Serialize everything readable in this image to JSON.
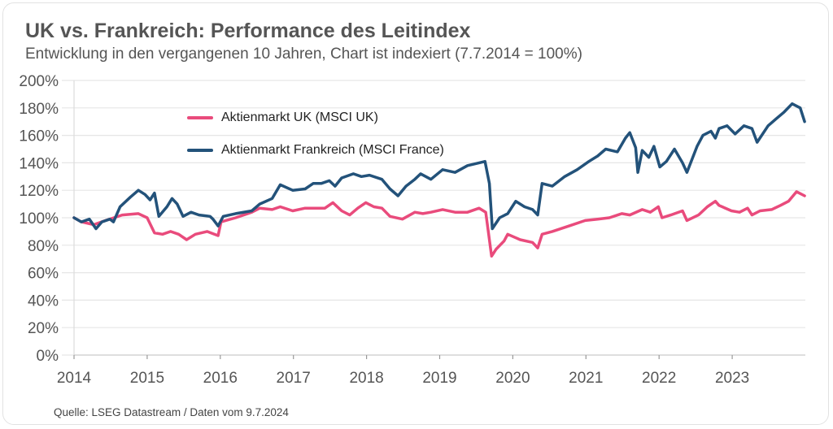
{
  "title": "UK vs. Frankreich: Performance des Leitindex",
  "subtitle": "Entwicklung in den vergangenen 10 Jahren, Chart ist indexiert (7.7.2014 = 100%)",
  "source": "Quelle: LSEG Datastream / Daten vom 9.7.2024",
  "chart_data": {
    "type": "line",
    "title": "UK vs. Frankreich: Performance des Leitindex",
    "xlabel": "",
    "ylabel": "",
    "xlim": [
      2014.5,
      2024.5
    ],
    "ylim": [
      0,
      200
    ],
    "grid": true,
    "legend_position": "top-left",
    "y_ticks": [
      0,
      20,
      40,
      60,
      80,
      100,
      120,
      140,
      160,
      180,
      200
    ],
    "y_tick_labels": [
      "0%",
      "20%",
      "40%",
      "60%",
      "80%",
      "100%",
      "120%",
      "140%",
      "160%",
      "180%",
      "200%"
    ],
    "x_ticks": [
      2014.5,
      2015.5,
      2016.5,
      2017.5,
      2018.5,
      2019.5,
      2020.5,
      2021.5,
      2022.5,
      2023.5
    ],
    "x_tick_labels": [
      "2014",
      "2015",
      "2016",
      "2017",
      "2018",
      "2019",
      "2020",
      "2021",
      "2022",
      "2023"
    ],
    "series": [
      {
        "name": "Aktienmarkt UK (MSCI UK)",
        "color": "#e94b7c",
        "points": [
          [
            2014.5,
            100
          ],
          [
            2014.6,
            97
          ],
          [
            2014.77,
            95
          ],
          [
            2014.93,
            98
          ],
          [
            2015.16,
            102
          ],
          [
            2015.38,
            103
          ],
          [
            2015.5,
            100
          ],
          [
            2015.6,
            89
          ],
          [
            2015.71,
            88
          ],
          [
            2015.82,
            90
          ],
          [
            2015.93,
            88
          ],
          [
            2016.04,
            84
          ],
          [
            2016.16,
            88
          ],
          [
            2016.32,
            90
          ],
          [
            2016.47,
            87
          ],
          [
            2016.51,
            97
          ],
          [
            2016.71,
            100
          ],
          [
            2016.93,
            104
          ],
          [
            2017.04,
            107
          ],
          [
            2017.21,
            106
          ],
          [
            2017.32,
            108
          ],
          [
            2017.49,
            105
          ],
          [
            2017.66,
            107
          ],
          [
            2017.77,
            107
          ],
          [
            2017.93,
            107
          ],
          [
            2018.04,
            111
          ],
          [
            2018.16,
            105
          ],
          [
            2018.27,
            102
          ],
          [
            2018.38,
            107
          ],
          [
            2018.49,
            111
          ],
          [
            2018.6,
            108
          ],
          [
            2018.71,
            107
          ],
          [
            2018.82,
            101
          ],
          [
            2018.99,
            99
          ],
          [
            2019.16,
            104
          ],
          [
            2019.27,
            103
          ],
          [
            2019.38,
            104
          ],
          [
            2019.54,
            106
          ],
          [
            2019.71,
            104
          ],
          [
            2019.88,
            104
          ],
          [
            2020.04,
            107
          ],
          [
            2020.13,
            104
          ],
          [
            2020.21,
            72
          ],
          [
            2020.27,
            77
          ],
          [
            2020.38,
            83
          ],
          [
            2020.43,
            88
          ],
          [
            2020.6,
            84
          ],
          [
            2020.77,
            82
          ],
          [
            2020.84,
            78
          ],
          [
            2020.9,
            88
          ],
          [
            2021.04,
            90
          ],
          [
            2021.27,
            94
          ],
          [
            2021.49,
            98
          ],
          [
            2021.66,
            99
          ],
          [
            2021.82,
            100
          ],
          [
            2021.99,
            103
          ],
          [
            2022.1,
            102
          ],
          [
            2022.27,
            106
          ],
          [
            2022.38,
            104
          ],
          [
            2022.49,
            108
          ],
          [
            2022.54,
            100
          ],
          [
            2022.66,
            102
          ],
          [
            2022.82,
            105
          ],
          [
            2022.88,
            98
          ],
          [
            2023.04,
            102
          ],
          [
            2023.16,
            108
          ],
          [
            2023.27,
            112
          ],
          [
            2023.32,
            109
          ],
          [
            2023.49,
            105
          ],
          [
            2023.6,
            104
          ],
          [
            2023.71,
            107
          ],
          [
            2023.77,
            102
          ],
          [
            2023.88,
            105
          ],
          [
            2024.04,
            106
          ],
          [
            2024.16,
            109
          ],
          [
            2024.27,
            112
          ],
          [
            2024.38,
            119
          ],
          [
            2024.49,
            116
          ]
        ]
      },
      {
        "name": "Aktienmarkt Frankreich (MSCI France)",
        "color": "#23527a",
        "points": [
          [
            2014.5,
            100
          ],
          [
            2014.6,
            97
          ],
          [
            2014.71,
            99
          ],
          [
            2014.8,
            92
          ],
          [
            2014.88,
            97
          ],
          [
            2014.99,
            99
          ],
          [
            2015.04,
            97
          ],
          [
            2015.13,
            108
          ],
          [
            2015.27,
            115
          ],
          [
            2015.38,
            120
          ],
          [
            2015.47,
            117
          ],
          [
            2015.54,
            113
          ],
          [
            2015.6,
            118
          ],
          [
            2015.66,
            101
          ],
          [
            2015.77,
            108
          ],
          [
            2015.84,
            114
          ],
          [
            2015.91,
            110
          ],
          [
            2015.99,
            101
          ],
          [
            2016.1,
            104
          ],
          [
            2016.21,
            102
          ],
          [
            2016.36,
            101
          ],
          [
            2016.4,
            99
          ],
          [
            2016.47,
            94
          ],
          [
            2016.54,
            101
          ],
          [
            2016.71,
            103
          ],
          [
            2016.93,
            105
          ],
          [
            2017.04,
            110
          ],
          [
            2017.21,
            114
          ],
          [
            2017.32,
            124
          ],
          [
            2017.49,
            120
          ],
          [
            2017.66,
            121
          ],
          [
            2017.77,
            125
          ],
          [
            2017.88,
            125
          ],
          [
            2017.99,
            127
          ],
          [
            2018.07,
            123
          ],
          [
            2018.16,
            129
          ],
          [
            2018.32,
            132
          ],
          [
            2018.43,
            130
          ],
          [
            2018.54,
            131
          ],
          [
            2018.71,
            128
          ],
          [
            2018.82,
            121
          ],
          [
            2018.93,
            116
          ],
          [
            2019.04,
            123
          ],
          [
            2019.16,
            128
          ],
          [
            2019.24,
            132
          ],
          [
            2019.38,
            128
          ],
          [
            2019.54,
            135
          ],
          [
            2019.71,
            133
          ],
          [
            2019.88,
            138
          ],
          [
            2020.04,
            140
          ],
          [
            2020.12,
            141
          ],
          [
            2020.18,
            125
          ],
          [
            2020.22,
            92
          ],
          [
            2020.32,
            100
          ],
          [
            2020.43,
            103
          ],
          [
            2020.54,
            112
          ],
          [
            2020.66,
            108
          ],
          [
            2020.77,
            106
          ],
          [
            2020.84,
            102
          ],
          [
            2020.9,
            125
          ],
          [
            2021.04,
            123
          ],
          [
            2021.21,
            130
          ],
          [
            2021.38,
            135
          ],
          [
            2021.54,
            141
          ],
          [
            2021.66,
            145
          ],
          [
            2021.77,
            150
          ],
          [
            2021.93,
            148
          ],
          [
            2022.04,
            158
          ],
          [
            2022.1,
            162
          ],
          [
            2022.18,
            151
          ],
          [
            2022.21,
            133
          ],
          [
            2022.27,
            149
          ],
          [
            2022.36,
            144
          ],
          [
            2022.43,
            152
          ],
          [
            2022.51,
            137
          ],
          [
            2022.6,
            141
          ],
          [
            2022.71,
            150
          ],
          [
            2022.82,
            140
          ],
          [
            2022.88,
            133
          ],
          [
            2023.02,
            152
          ],
          [
            2023.1,
            160
          ],
          [
            2023.21,
            163
          ],
          [
            2023.27,
            158
          ],
          [
            2023.32,
            165
          ],
          [
            2023.43,
            167
          ],
          [
            2023.54,
            161
          ],
          [
            2023.66,
            167
          ],
          [
            2023.77,
            165
          ],
          [
            2023.84,
            155
          ],
          [
            2023.99,
            167
          ],
          [
            2024.1,
            172
          ],
          [
            2024.21,
            177
          ],
          [
            2024.32,
            183
          ],
          [
            2024.43,
            180
          ],
          [
            2024.49,
            170
          ]
        ]
      }
    ]
  }
}
